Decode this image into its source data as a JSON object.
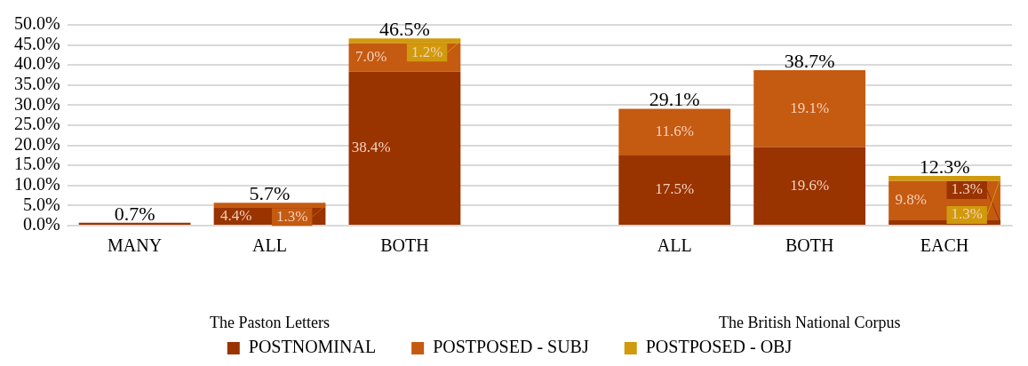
{
  "chart_data": {
    "type": "bar",
    "stacked": true,
    "categories": [
      "MANY",
      "ALL",
      "BOTH",
      null,
      "ALL",
      "BOTH",
      "EACH"
    ],
    "series": [
      {
        "name": "POSTNOMINAL",
        "color": "#993300",
        "values": [
          0.7,
          4.4,
          38.4,
          null,
          17.5,
          19.6,
          1.3
        ],
        "value_labels": [
          null,
          "4.4%",
          "38.4%",
          null,
          "17.5%",
          "19.6%",
          "1.3%"
        ]
      },
      {
        "name": "POSTPOSED - SUBJ",
        "color": "#c55a11",
        "values": [
          0,
          1.3,
          7.0,
          null,
          11.6,
          19.1,
          9.8
        ],
        "value_labels": [
          null,
          "1.3%",
          "7.0%",
          null,
          "11.6%",
          "19.1%",
          "9.8%"
        ]
      },
      {
        "name": "POSTPOSED - OBJ",
        "color": "#d09a0c",
        "values": [
          0,
          0,
          1.2,
          null,
          0,
          0,
          1.3
        ],
        "value_labels": [
          null,
          null,
          "1.2%",
          null,
          null,
          null,
          "1.3%"
        ]
      }
    ],
    "totals": [
      "0.7%",
      "5.7%",
      "46.5%",
      null,
      "29.1%",
      "38.7%",
      "12.3%"
    ],
    "ylim": [
      0,
      50
    ],
    "yticks": [
      {
        "value": 0,
        "label": "0.0%"
      },
      {
        "value": 5,
        "label": "5.0%"
      },
      {
        "value": 10,
        "label": "10.0%"
      },
      {
        "value": 15,
        "label": "15.0%"
      },
      {
        "value": 20,
        "label": "20.0%"
      },
      {
        "value": 25,
        "label": "25.0%"
      },
      {
        "value": 30,
        "label": "30.0%"
      },
      {
        "value": 35,
        "label": "35.0%"
      },
      {
        "value": 40,
        "label": "40.0%"
      },
      {
        "value": 45,
        "label": "45.0%"
      },
      {
        "value": 50,
        "label": "50.0%"
      }
    ],
    "grid": "y",
    "legend": "bottom",
    "annotations": [
      "The Paston Letters",
      "The British National Corpus"
    ]
  }
}
